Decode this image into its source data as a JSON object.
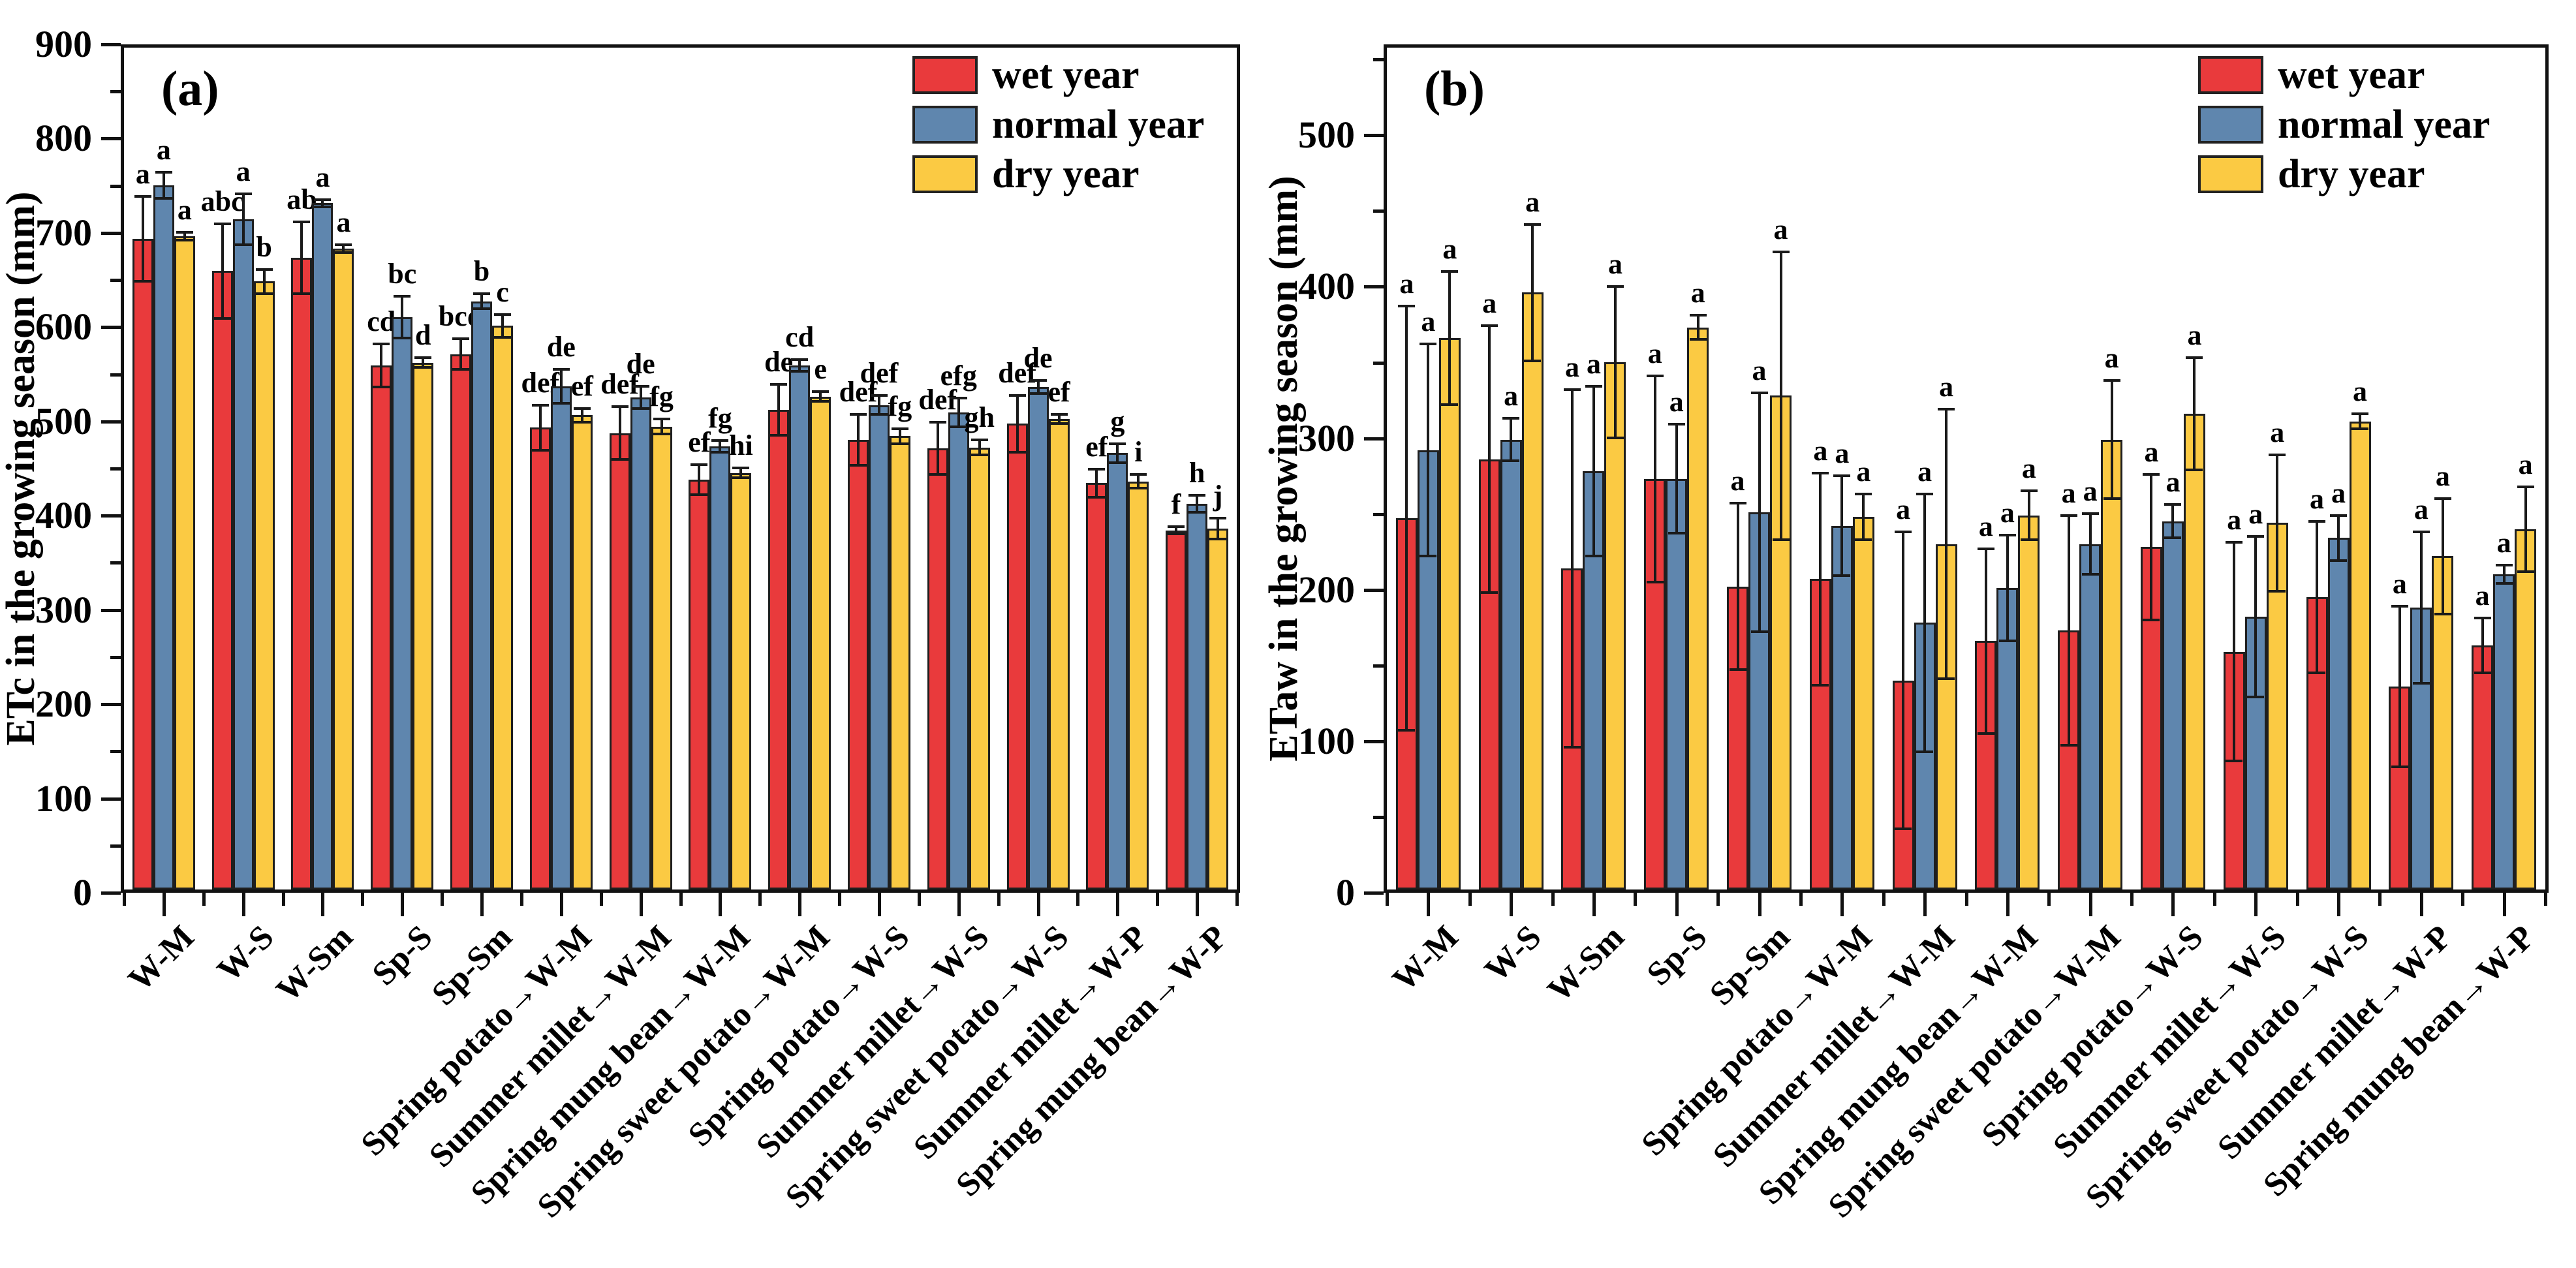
{
  "figure": {
    "background": "#ffffff"
  },
  "legend": {
    "position": "top-right",
    "items": [
      {
        "label": "wet year",
        "color": "#e93a3c"
      },
      {
        "label": "normal year",
        "color": "#5f86ae"
      },
      {
        "label": "dry year",
        "color": "#fbca43"
      }
    ]
  },
  "chart_data": [
    {
      "type": "bar",
      "panel_label": "(a)",
      "ylabel": "ETc in the growing season (mm)",
      "ylim": [
        0,
        900
      ],
      "ytick_major": 100,
      "ytick_minor": 50,
      "ymax_label": 900,
      "grid": false,
      "legend_position": "top-right",
      "categories": [
        "W-M",
        "W-S",
        "W-Sm",
        "Sp-S",
        "Sp-Sm",
        "Spring potato→W-M",
        "Summer millet→W-M",
        "Spring mung bean→W-M",
        "Spring sweet potato→W-M",
        "Spring potato→W-S",
        "Summer millet→W-S",
        "Spring sweet potato→W-S",
        "Summer millet→W-P",
        "Spring mung bean→W-P"
      ],
      "series": [
        {
          "name": "wet year",
          "color": "#e93a3c",
          "values": [
            690,
            656,
            670,
            556,
            568,
            490,
            484,
            435,
            509,
            477,
            468,
            494,
            431,
            381
          ],
          "errors": [
            45,
            50,
            38,
            23,
            16,
            24,
            28,
            16,
            27,
            27,
            28,
            30,
            15,
            4
          ],
          "letters": [
            "a",
            "abc",
            "ab",
            "cd",
            "bcd",
            "def",
            "def",
            "ef",
            "de",
            "def",
            "def",
            "def",
            "ef",
            "f"
          ]
        },
        {
          "name": "normal year",
          "color": "#5f86ae",
          "values": [
            747,
            711,
            728,
            607,
            624,
            534,
            522,
            470,
            556,
            514,
            506,
            533,
            463,
            409
          ],
          "errors": [
            14,
            27,
            4,
            22,
            8,
            18,
            12,
            6,
            6,
            10,
            15,
            7,
            10,
            9
          ],
          "letters": [
            "a",
            "a",
            "a",
            "bc",
            "b",
            "de",
            "de",
            "fg",
            "cd",
            "def",
            "efg",
            "de",
            "g",
            "h"
          ]
        },
        {
          "name": "dry year",
          "color": "#fbca43",
          "values": [
            693,
            645,
            680,
            559,
            598,
            503,
            491,
            442,
            523,
            481,
            469,
            499,
            433,
            383
          ],
          "errors": [
            4,
            13,
            4,
            5,
            12,
            7,
            8,
            5,
            5,
            8,
            8,
            5,
            7,
            11
          ],
          "letters": [
            "a",
            "b",
            "a",
            "d",
            "c",
            "ef",
            "fg",
            "hi",
            "e",
            "fg",
            "gh",
            "ef",
            "i",
            "j"
          ]
        }
      ]
    },
    {
      "type": "bar",
      "panel_label": "(b)",
      "ylabel": "ETaw in the growing season (mm)",
      "ylim": [
        0,
        560
      ],
      "ytick_major": 100,
      "ytick_minor": 50,
      "ymax_label": 500,
      "grid": false,
      "legend_position": "top-right",
      "categories": [
        "W-M",
        "W-S",
        "W-Sm",
        "Sp-S",
        "Sp-Sm",
        "Spring potato→W-M",
        "Summer millet→W-M",
        "Spring mung bean→W-M",
        "Spring sweet potato→W-M",
        "Spring potato→W-S",
        "Summer millet→W-S",
        "Spring sweet potato→W-S",
        "Summer millet→W-P",
        "Spring mung bean→W-P"
      ],
      "series": [
        {
          "name": "wet year",
          "color": "#e93a3c",
          "values": [
            245,
            284,
            212,
            271,
            200,
            205,
            138,
            164,
            171,
            226,
            157,
            193,
            134,
            161
          ],
          "errors": [
            140,
            88,
            118,
            68,
            55,
            70,
            98,
            61,
            76,
            48,
            72,
            50,
            53,
            18
          ],
          "letters": [
            "a",
            "a",
            "a",
            "a",
            "a",
            "a",
            "a",
            "a",
            "a",
            "a",
            "a",
            "a",
            "a",
            "a"
          ]
        },
        {
          "name": "normal year",
          "color": "#5f86ae",
          "values": [
            290,
            297,
            276,
            271,
            249,
            240,
            176,
            199,
            228,
            243,
            180,
            232,
            186,
            208
          ],
          "errors": [
            70,
            14,
            56,
            36,
            79,
            33,
            85,
            35,
            20,
            11,
            53,
            15,
            50,
            6
          ],
          "letters": [
            "a",
            "a",
            "a",
            "a",
            "a",
            "a",
            "a",
            "a",
            "a",
            "a",
            "a",
            "a",
            "a",
            "a"
          ]
        },
        {
          "name": "dry year",
          "color": "#fbca43",
          "values": [
            364,
            394,
            348,
            371,
            326,
            246,
            228,
            247,
            297,
            314,
            242,
            309,
            220,
            238
          ],
          "errors": [
            44,
            45,
            50,
            8,
            95,
            15,
            89,
            16,
            39,
            37,
            45,
            5,
            38,
            28
          ],
          "letters": [
            "a",
            "a",
            "a",
            "a",
            "a",
            "a",
            "a",
            "a",
            "a",
            "a",
            "a",
            "a",
            "a",
            "a"
          ]
        }
      ]
    }
  ]
}
